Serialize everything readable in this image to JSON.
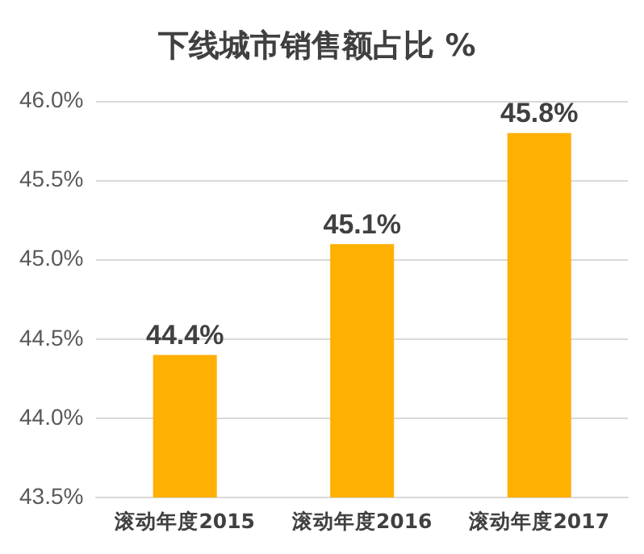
{
  "chart_data": {
    "type": "bar",
    "title": "下线城市销售额占比 %",
    "categories": [
      "滚动年度2015",
      "滚动年度2016",
      "滚动年度2017"
    ],
    "values": [
      44.4,
      45.1,
      45.8
    ],
    "color": "#ffb000",
    "value_labels": [
      "44.4%",
      "45.1%",
      "45.8%"
    ],
    "ylim": [
      43.5,
      46.0
    ],
    "yticks": [
      {
        "value": 43.5,
        "label": "43.5%"
      },
      {
        "value": 44.0,
        "label": "44.0%"
      },
      {
        "value": 44.5,
        "label": "44.5%"
      },
      {
        "value": 45.0,
        "label": "45.0%"
      },
      {
        "value": 45.5,
        "label": "45.5%"
      },
      {
        "value": 46.0,
        "label": "46.0%"
      }
    ],
    "grid": "y",
    "legend": false
  }
}
